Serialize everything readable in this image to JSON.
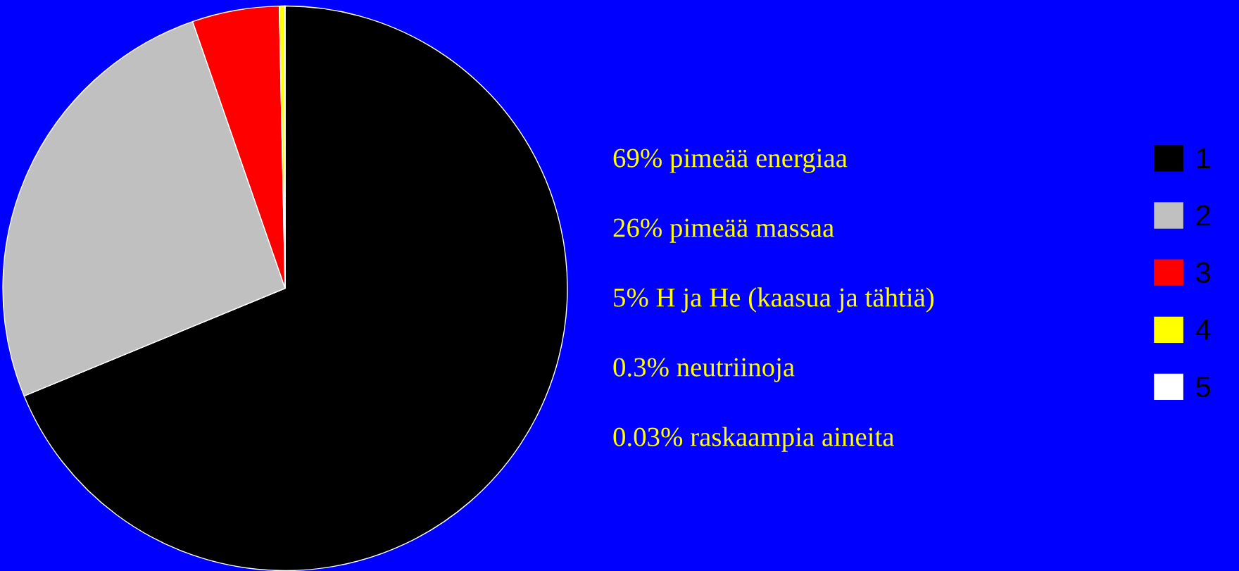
{
  "chart_data": {
    "type": "pie",
    "categories": [
      "1",
      "2",
      "3",
      "4",
      "5"
    ],
    "values": [
      69,
      26,
      5,
      0.3,
      0.03
    ],
    "colors": [
      "#000000",
      "#c0c0c0",
      "#ff0000",
      "#ffff00",
      "#ffffff"
    ],
    "annotations": [
      "69% pimeää energiaa",
      "26% pimeää massaa",
      "5% H ja He (kaasua ja tähtiä)",
      "0.3% neutriinoja",
      "0.03% raskaampia aineita"
    ],
    "legend": "right"
  }
}
